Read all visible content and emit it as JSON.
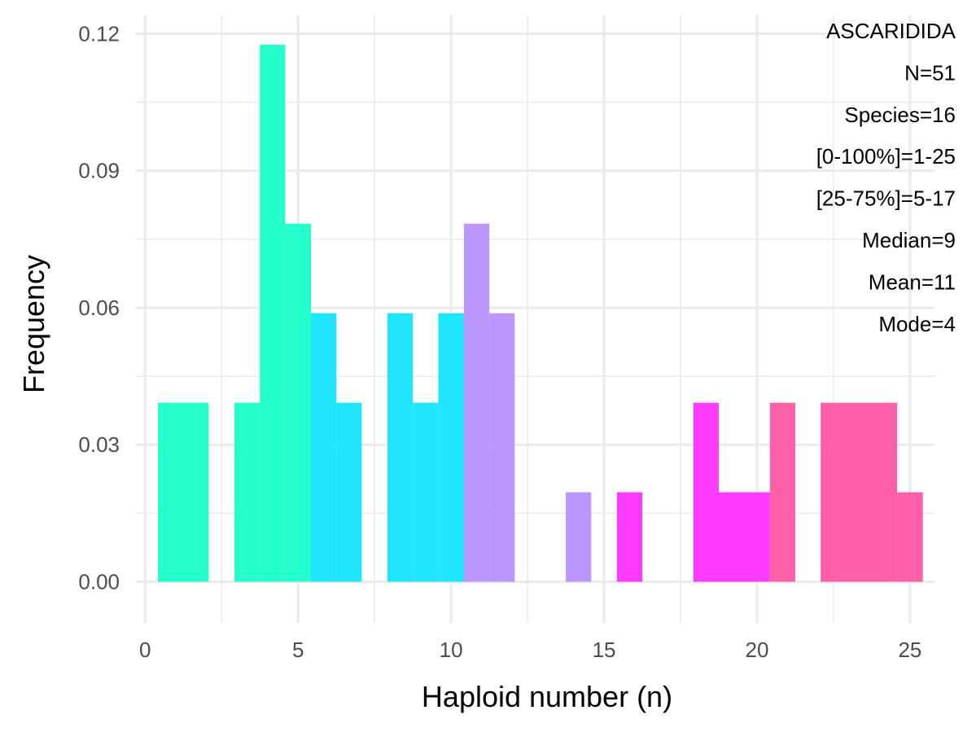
{
  "chart_data": {
    "type": "bar",
    "xlabel": "Haploid number (n)",
    "ylabel": "Frequency",
    "xlim": [
      -0.3,
      25.8
    ],
    "ylim": [
      -0.009,
      0.124
    ],
    "x_ticks": [
      0,
      5,
      10,
      15,
      20,
      25
    ],
    "x_tick_labels": [
      "0",
      "5",
      "10",
      "15",
      "20",
      "25"
    ],
    "y_ticks": [
      0.0,
      0.03,
      0.06,
      0.09,
      0.12
    ],
    "y_tick_labels": [
      "0.00",
      "0.03",
      "0.06",
      "0.09",
      "0.12"
    ],
    "grid": true,
    "legend": "none",
    "bin_width": 0.833,
    "bars": [
      {
        "x0": 0.42,
        "x1": 2.08,
        "value": 0.0392,
        "color": "#25FFCC"
      },
      {
        "x0": 2.92,
        "x1": 3.75,
        "value": 0.0392,
        "color": "#25FFCC"
      },
      {
        "x0": 3.75,
        "x1": 4.58,
        "value": 0.1176,
        "color": "#25FFCC"
      },
      {
        "x0": 4.58,
        "x1": 5.42,
        "value": 0.0784,
        "color": "#25FFCC"
      },
      {
        "x0": 5.42,
        "x1": 6.25,
        "value": 0.0588,
        "color": "#1FE5FF"
      },
      {
        "x0": 6.25,
        "x1": 7.08,
        "value": 0.0392,
        "color": "#1FE5FF"
      },
      {
        "x0": 7.92,
        "x1": 8.75,
        "value": 0.0588,
        "color": "#1FE5FF"
      },
      {
        "x0": 8.75,
        "x1": 9.58,
        "value": 0.0392,
        "color": "#1FE5FF"
      },
      {
        "x0": 9.58,
        "x1": 10.42,
        "value": 0.0588,
        "color": "#1FE5FF"
      },
      {
        "x0": 10.42,
        "x1": 11.25,
        "value": 0.0784,
        "color": "#BB96FF"
      },
      {
        "x0": 11.25,
        "x1": 12.08,
        "value": 0.0588,
        "color": "#BB96FF"
      },
      {
        "x0": 13.75,
        "x1": 14.58,
        "value": 0.0196,
        "color": "#BB96FF"
      },
      {
        "x0": 15.42,
        "x1": 16.25,
        "value": 0.0196,
        "color": "#FF3BFF"
      },
      {
        "x0": 17.92,
        "x1": 18.75,
        "value": 0.0392,
        "color": "#FF3BFF"
      },
      {
        "x0": 18.75,
        "x1": 20.42,
        "value": 0.0196,
        "color": "#FF3BFF"
      },
      {
        "x0": 20.42,
        "x1": 21.25,
        "value": 0.0392,
        "color": "#FF5FA8"
      },
      {
        "x0": 22.08,
        "x1": 24.58,
        "value": 0.0392,
        "color": "#FF5FA8"
      },
      {
        "x0": 24.58,
        "x1": 25.42,
        "value": 0.0196,
        "color": "#FF5FA8"
      }
    ],
    "annotations": [
      "ASCARIDIDA",
      "N=51",
      "Species=16",
      "[0-100%]=1-25",
      "[25-75%]=5-17",
      "Median=9",
      "Mean=11",
      "Mode=4"
    ],
    "colors": {
      "gridline": "#EBEBEB",
      "tick_text": "#4D4D4D",
      "background": "#FFFFFF"
    }
  }
}
